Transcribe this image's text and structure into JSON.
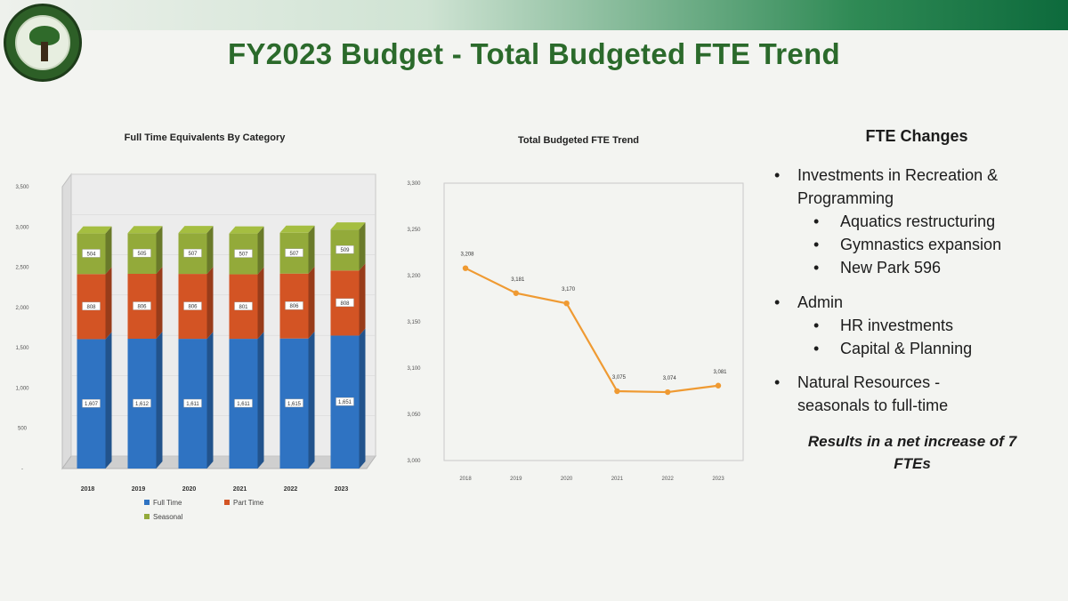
{
  "slide": {
    "title": "FY2023 Budget - Total Budgeted FTE Trend"
  },
  "chart_data": [
    {
      "type": "bar",
      "stacked": true,
      "title": "Full Time Equivalents By Category",
      "categories": [
        "2018",
        "2019",
        "2020",
        "2021",
        "2022",
        "2023"
      ],
      "series": [
        {
          "name": "Full Time",
          "color": "#2f73c2",
          "values": [
            1607,
            1612,
            1611,
            1611,
            1615,
            1651
          ],
          "labels": [
            "1,607",
            "1,612",
            "1,611",
            "1,611",
            "1,615",
            "1,651"
          ]
        },
        {
          "name": "Part Time",
          "color": "#d35424",
          "values": [
            808,
            806,
            806,
            801,
            806,
            808
          ],
          "labels": [
            "808",
            "806",
            "806",
            "801",
            "806",
            "808"
          ]
        },
        {
          "name": "Seasonal",
          "color": "#93aa3a",
          "values": [
            504,
            505,
            507,
            507,
            507,
            509
          ],
          "labels": [
            "504",
            "505",
            "507",
            "507",
            "507",
            "509"
          ]
        }
      ],
      "y_ticks": [
        "-",
        "500",
        "1,000",
        "1,500",
        "2,000",
        "2,500",
        "3,000",
        "3,500"
      ],
      "ylim": [
        0,
        3500
      ],
      "legend": "bottom"
    },
    {
      "type": "line",
      "title": "Total Budgeted FTE Trend",
      "categories": [
        "2018",
        "2019",
        "2020",
        "2021",
        "2022",
        "2023"
      ],
      "series": [
        {
          "color": "#ef9a32",
          "values": [
            3208,
            3181,
            3170,
            3075,
            3074,
            3081
          ],
          "labels": [
            "3,208",
            "3,181",
            "3,170",
            "3,075",
            "3,074",
            "3,081"
          ]
        }
      ],
      "y_ticks": [
        "3,000",
        "3,050",
        "3,100",
        "3,150",
        "3,200",
        "3,250",
        "3,300"
      ],
      "ylim": [
        3000,
        3300
      ]
    }
  ],
  "fte_changes": {
    "heading": "FTE Changes",
    "bullet1": {
      "text_line1": "Investments in Recreation &",
      "text_line2": "Programming",
      "sub": [
        "Aquatics restructuring",
        "Gymnastics expansion",
        "New Park 596"
      ]
    },
    "bullet2": {
      "text": "Admin",
      "sub": [
        "HR investments",
        "Capital & Planning"
      ]
    },
    "bullet3": {
      "text_line1": "Natural Resources -",
      "text_line2": "seasonals to full-time"
    },
    "result_line1": "Results in a net increase of 7",
    "result_line2": "FTEs"
  }
}
